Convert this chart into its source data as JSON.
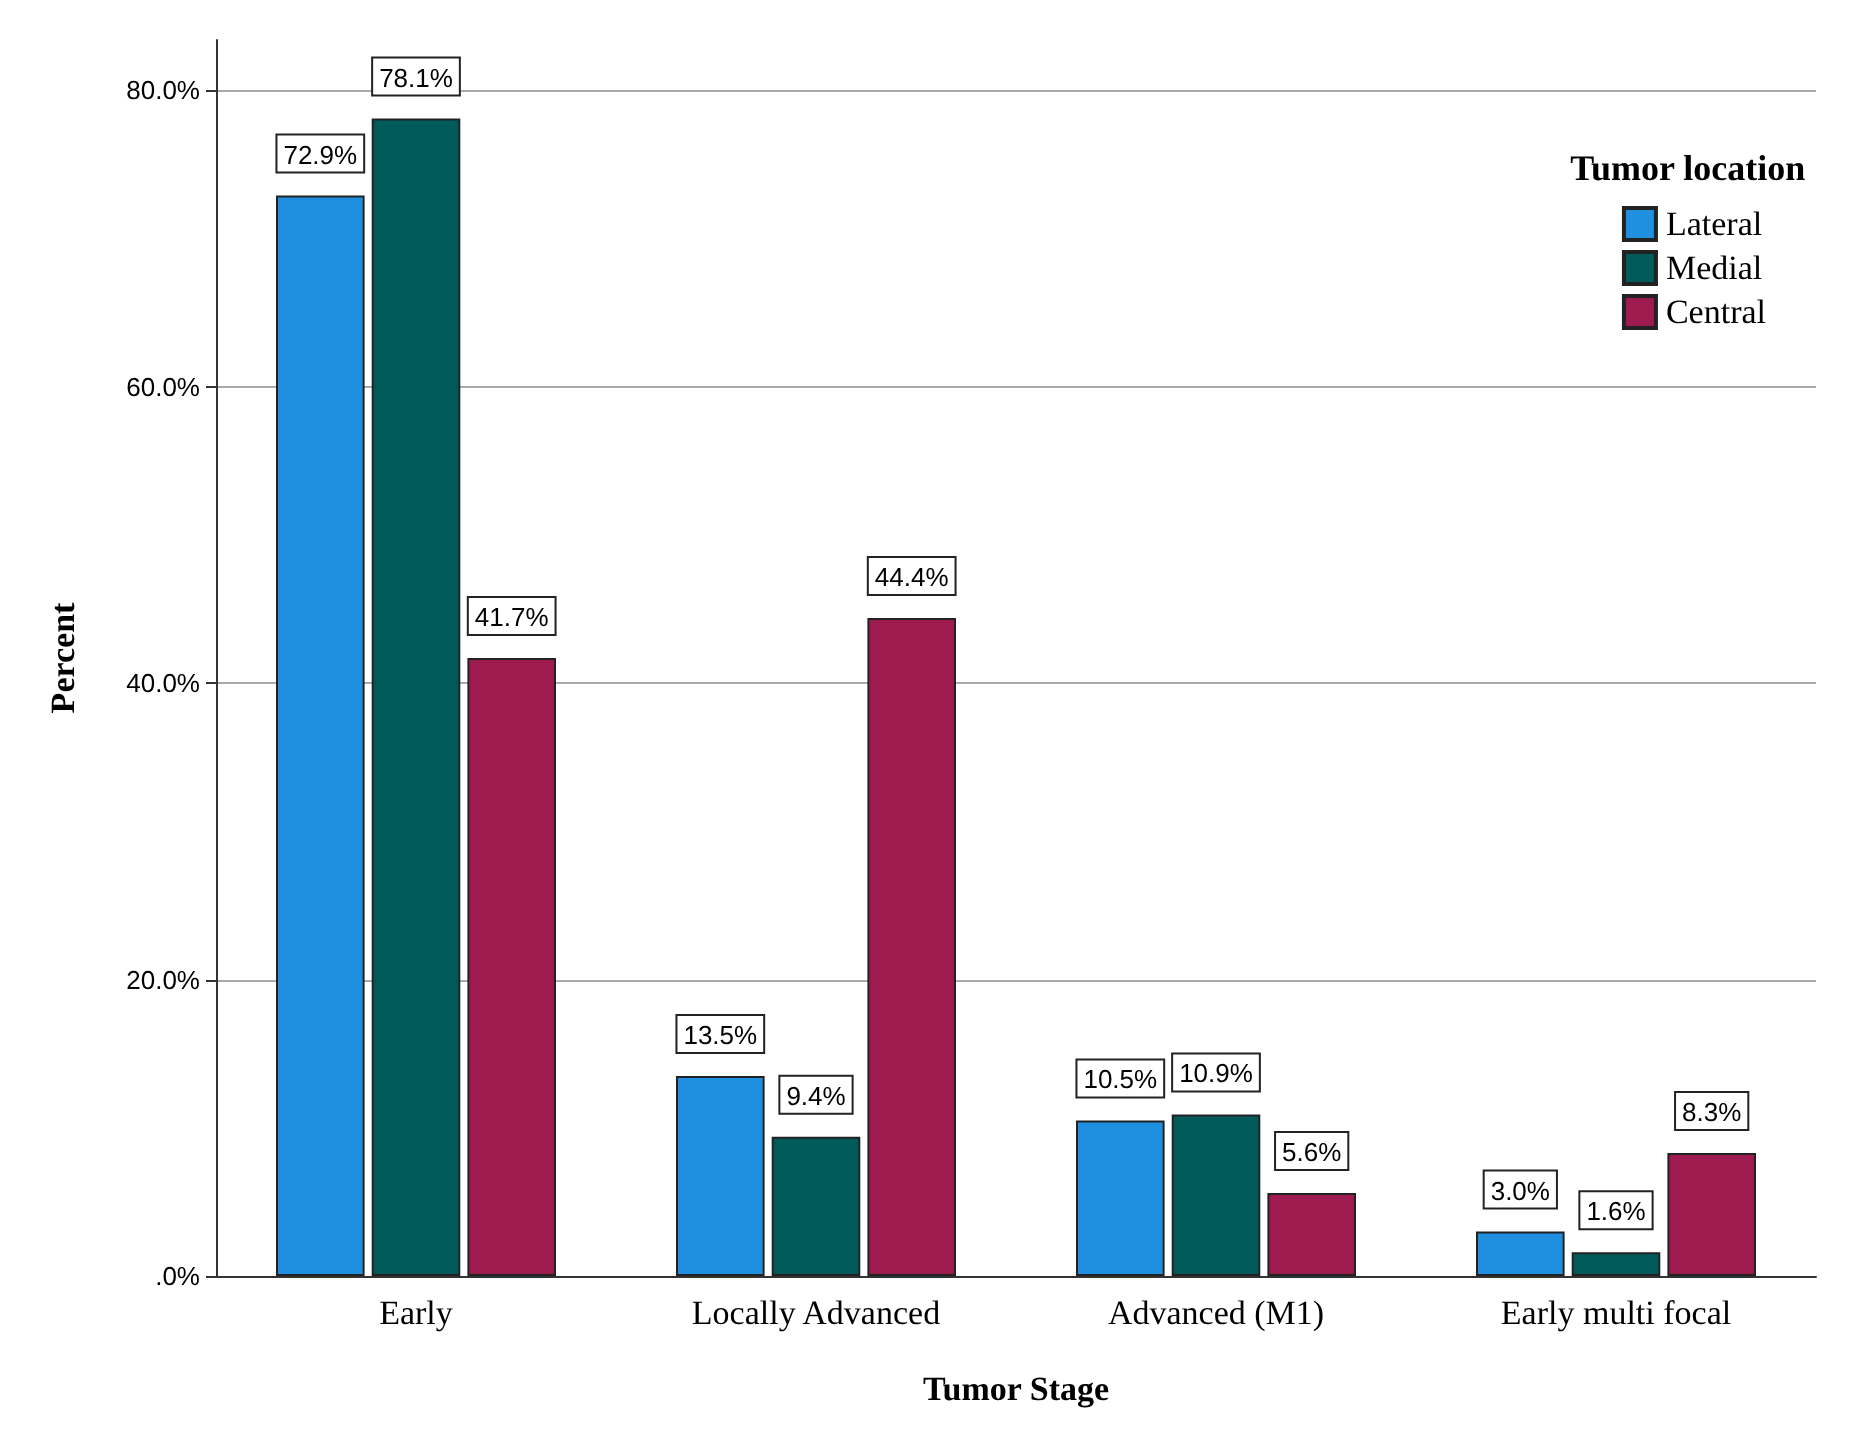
{
  "chart_data": {
    "type": "bar",
    "xlabel": "Tumor Stage",
    "ylabel": "Percent",
    "legend_title": "Tumor location",
    "categories": [
      "Early",
      "Locally Advanced",
      "Advanced (M1)",
      "Early multi focal"
    ],
    "series": [
      {
        "name": "Lateral",
        "color": "#1f8fe0",
        "values": [
          72.9,
          13.5,
          10.5,
          3.0
        ],
        "value_labels": [
          "72.9%",
          "13.5%",
          "10.5%",
          "3.0%"
        ]
      },
      {
        "name": "Medial",
        "color": "#005a5a",
        "values": [
          78.1,
          9.4,
          10.9,
          1.6
        ],
        "value_labels": [
          "78.1%",
          "9.4%",
          "10.9%",
          "1.6%"
        ]
      },
      {
        "name": "Central",
        "color": "#9e1b4f",
        "values": [
          41.7,
          44.4,
          5.6,
          8.3
        ],
        "value_labels": [
          "41.7%",
          "44.4%",
          "5.6%",
          "8.3%"
        ]
      }
    ],
    "ylim": [
      0,
      83.4
    ],
    "yticks": [
      {
        "value": 0,
        "label": ".0%"
      },
      {
        "value": 20,
        "label": "20.0%"
      },
      {
        "value": 40,
        "label": "40.0%"
      },
      {
        "value": 60,
        "label": "60.0%"
      },
      {
        "value": 80,
        "label": "80.0%"
      }
    ],
    "grid": "y",
    "legend": "top right"
  }
}
